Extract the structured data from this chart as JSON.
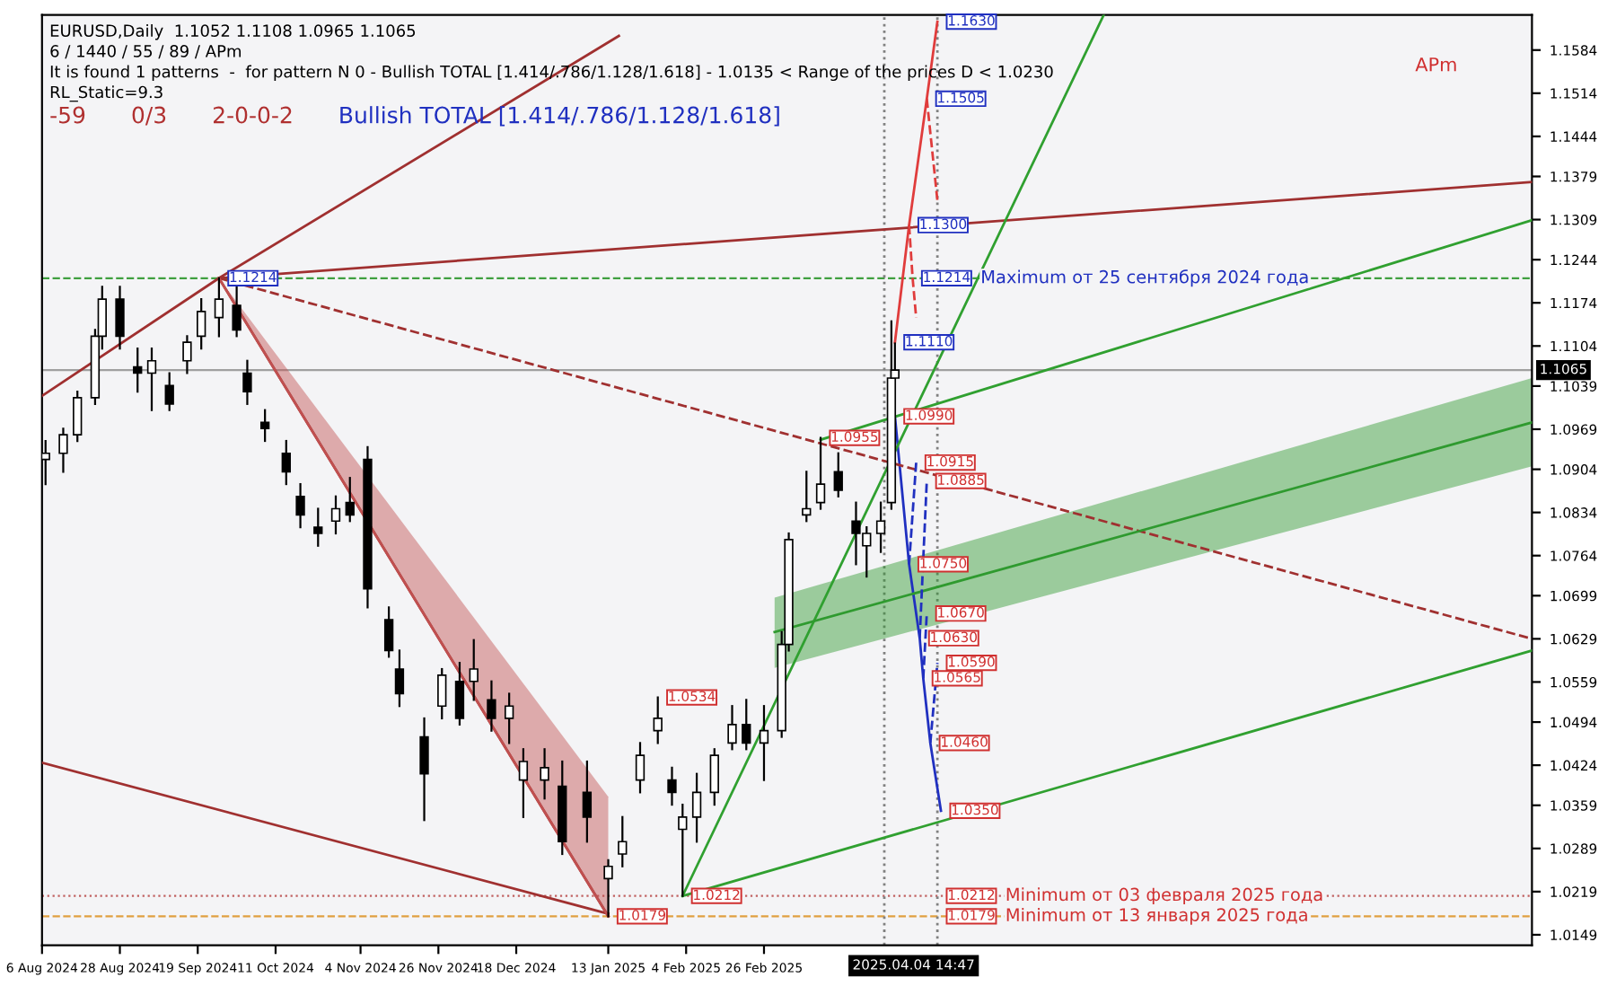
{
  "chart_data": {
    "type": "candlestick",
    "x": [
      "2024-08-07",
      "2024-08-12",
      "2024-08-16",
      "2024-08-21",
      "2024-08-23",
      "2024-08-28",
      "2024-09-02",
      "2024-09-06",
      "2024-09-11",
      "2024-09-16",
      "2024-09-20",
      "2024-09-25",
      "2024-09-30",
      "2024-10-03",
      "2024-10-08",
      "2024-10-14",
      "2024-10-18",
      "2024-10-23",
      "2024-10-28",
      "2024-11-01",
      "2024-11-06",
      "2024-11-12",
      "2024-11-15",
      "2024-11-22",
      "2024-11-27",
      "2024-12-02",
      "2024-12-06",
      "2024-12-11",
      "2024-12-16",
      "2024-12-20",
      "2024-12-26",
      "2024-12-31",
      "2025-01-07",
      "2025-01-13",
      "2025-01-17",
      "2025-01-22",
      "2025-01-27",
      "2025-01-31",
      "2025-02-03",
      "2025-02-07",
      "2025-02-12",
      "2025-02-17",
      "2025-02-21",
      "2025-02-26",
      "2025-03-03",
      "2025-03-05",
      "2025-03-10",
      "2025-03-14",
      "2025-03-19",
      "2025-03-24",
      "2025-03-27",
      "2025-03-31",
      "2025-04-03",
      "2025-04-04"
    ],
    "ohlc": [
      [
        1.092,
        1.095,
        1.088,
        1.093
      ],
      [
        1.093,
        1.097,
        1.09,
        1.096
      ],
      [
        1.096,
        1.103,
        1.095,
        1.102
      ],
      [
        1.102,
        1.113,
        1.101,
        1.112
      ],
      [
        1.112,
        1.12,
        1.11,
        1.118
      ],
      [
        1.118,
        1.12,
        1.11,
        1.112
      ],
      [
        1.107,
        1.11,
        1.103,
        1.106
      ],
      [
        1.106,
        1.11,
        1.1,
        1.108
      ],
      [
        1.104,
        1.106,
        1.1,
        1.101
      ],
      [
        1.108,
        1.112,
        1.106,
        1.111
      ],
      [
        1.112,
        1.118,
        1.11,
        1.116
      ],
      [
        1.115,
        1.1214,
        1.112,
        1.118
      ],
      [
        1.117,
        1.12,
        1.112,
        1.113
      ],
      [
        1.106,
        1.108,
        1.101,
        1.103
      ],
      [
        1.098,
        1.1,
        1.095,
        1.097
      ],
      [
        1.093,
        1.095,
        1.088,
        1.09
      ],
      [
        1.086,
        1.088,
        1.081,
        1.083
      ],
      [
        1.081,
        1.084,
        1.078,
        1.08
      ],
      [
        1.082,
        1.086,
        1.08,
        1.084
      ],
      [
        1.085,
        1.089,
        1.082,
        1.083
      ],
      [
        1.092,
        1.094,
        1.068,
        1.071
      ],
      [
        1.066,
        1.068,
        1.06,
        1.061
      ],
      [
        1.058,
        1.061,
        1.052,
        1.054
      ],
      [
        1.047,
        1.05,
        1.0335,
        1.041
      ],
      [
        1.052,
        1.058,
        1.05,
        1.057
      ],
      [
        1.056,
        1.059,
        1.049,
        1.05
      ],
      [
        1.056,
        1.0627,
        1.053,
        1.058
      ],
      [
        1.053,
        1.056,
        1.048,
        1.05
      ],
      [
        1.05,
        1.054,
        1.046,
        1.052
      ],
      [
        1.04,
        1.045,
        1.034,
        1.043
      ],
      [
        1.04,
        1.045,
        1.037,
        1.042
      ],
      [
        1.039,
        1.043,
        1.028,
        1.03
      ],
      [
        1.038,
        1.043,
        1.03,
        1.034
      ],
      [
        1.024,
        1.027,
        1.0179,
        1.026
      ],
      [
        1.028,
        1.034,
        1.026,
        1.03
      ],
      [
        1.04,
        1.046,
        1.038,
        1.044
      ],
      [
        1.048,
        1.0534,
        1.046,
        1.05
      ],
      [
        1.04,
        1.042,
        1.036,
        1.038
      ],
      [
        1.032,
        1.036,
        1.0212,
        1.034
      ],
      [
        1.034,
        1.041,
        1.03,
        1.038
      ],
      [
        1.038,
        1.045,
        1.036,
        1.044
      ],
      [
        1.046,
        1.052,
        1.045,
        1.049
      ],
      [
        1.049,
        1.053,
        1.045,
        1.046
      ],
      [
        1.046,
        1.052,
        1.04,
        1.048
      ],
      [
        1.048,
        1.064,
        1.047,
        1.062
      ],
      [
        1.062,
        1.08,
        1.061,
        1.079
      ],
      [
        1.083,
        1.09,
        1.082,
        1.084
      ],
      [
        1.085,
        1.0955,
        1.084,
        1.088
      ],
      [
        1.09,
        1.093,
        1.086,
        1.087
      ],
      [
        1.082,
        1.085,
        1.075,
        1.08
      ],
      [
        1.078,
        1.081,
        1.073,
        1.08
      ],
      [
        1.08,
        1.085,
        1.077,
        1.082
      ],
      [
        1.085,
        1.1144,
        1.084,
        1.1052
      ],
      [
        1.1052,
        1.1108,
        1.0965,
        1.1065
      ]
    ],
    "series": [
      {
        "type": "line",
        "color": "#e03c3c",
        "line_style": "solid",
        "x": [
          "2025-04-04",
          "2025-04-08",
          "2025-04-13",
          "2025-04-16"
        ],
        "values": [
          1.111,
          1.13,
          1.1505,
          1.163
        ]
      },
      {
        "type": "line",
        "color": "#2030c0",
        "line_style": "solid",
        "x": [
          "2025-04-04",
          "2025-04-08",
          "2025-04-11",
          "2025-04-12",
          "2025-04-14",
          "2025-04-17"
        ],
        "values": [
          1.099,
          1.075,
          1.063,
          1.0565,
          1.046,
          1.035
        ]
      },
      {
        "type": "line",
        "color": "#a03030",
        "line_style": "solid",
        "x": [
          "2024-08-06",
          "2024-09-25",
          "2025-01-16"
        ],
        "values": [
          1.1023,
          1.1214,
          1.1607
        ]
      },
      {
        "type": "line",
        "color": "#a03030",
        "line_style": "solid",
        "x": [
          "2024-09-25",
          "2025-01-13"
        ],
        "values": [
          1.1214,
          1.0179
        ]
      },
      {
        "type": "line",
        "color": "#a03030",
        "line_style": "solid",
        "x": [
          "2024-08-06",
          "2025-01-13"
        ],
        "values": [
          1.0428,
          1.0183
        ]
      },
      {
        "type": "line",
        "color": "#a03030",
        "line_style": "solid",
        "x": [
          "2024-09-25",
          "2025-10-01"
        ],
        "values": [
          1.1214,
          1.137
        ]
      },
      {
        "type": "line",
        "color": "#a03030",
        "line_style": "dashed",
        "x": [
          "2024-09-25",
          "2025-10-01"
        ],
        "values": [
          1.1214,
          1.0629
        ]
      },
      {
        "type": "line",
        "color": "#30a030",
        "line_style": "solid",
        "x": [
          "2025-02-03",
          "2025-06-02"
        ],
        "values": [
          1.0212,
          1.1641
        ]
      },
      {
        "type": "line",
        "color": "#30a030",
        "line_style": "solid",
        "x": [
          "2025-02-03",
          "2025-10-01"
        ],
        "values": [
          1.0212,
          1.061
        ]
      },
      {
        "type": "line",
        "color": "#30a030",
        "line_style": "solid",
        "x": [
          "2025-03-14",
          "2025-10-01"
        ],
        "values": [
          1.0952,
          1.1308
        ]
      },
      {
        "type": "line",
        "color": "#2f9a2f",
        "line_style": "solid",
        "x": [
          "2025-03-01",
          "2025-10-01"
        ],
        "values": [
          1.064,
          1.098
        ],
        "lower": [
          1.0582,
          1.0909
        ],
        "upper": [
          1.0696,
          1.1052
        ]
      },
      {
        "type": "line",
        "color": "#c05050",
        "line_style": "solid",
        "x": [
          "2024-09-25",
          "2025-01-13"
        ],
        "values": [
          1.1214,
          1.0179
        ],
        "lower": [
          1.1214,
          1.0179
        ],
        "upper": [
          1.1214,
          1.0373
        ]
      },
      {
        "type": "line",
        "color": "#e03c3c",
        "line_style": "dashed",
        "x": [
          "2025-04-13",
          "2025-04-16"
        ],
        "values": [
          1.1505,
          1.134
        ]
      },
      {
        "type": "line",
        "color": "#e03c3c",
        "line_style": "dashed",
        "x": [
          "2025-04-08",
          "2025-04-09",
          "2025-04-10"
        ],
        "values": [
          1.13,
          1.1214,
          1.115
        ]
      },
      {
        "type": "line",
        "color": "#2030c0",
        "line_style": "dashed",
        "x": [
          "2025-04-08",
          "2025-04-10"
        ],
        "values": [
          1.075,
          1.0915
        ]
      },
      {
        "type": "line",
        "color": "#2030c0",
        "line_style": "dashed",
        "x": [
          "2025-04-11",
          "2025-04-13"
        ],
        "values": [
          1.063,
          1.0885
        ]
      },
      {
        "type": "line",
        "color": "#2030c0",
        "line_style": "dashed",
        "x": [
          "2025-04-12",
          "2025-04-13"
        ],
        "values": [
          1.0565,
          1.067
        ]
      },
      {
        "type": "line",
        "color": "#2030c0",
        "line_style": "dashed",
        "x": [
          "2025-04-14",
          "2025-04-16"
        ],
        "values": [
          1.046,
          1.059
        ]
      }
    ],
    "ref_lines": [
      {
        "axis": "y",
        "value": 1.1065,
        "label": "1.1065",
        "color": "#a0a0a0",
        "line_style": "solid"
      },
      {
        "axis": "y",
        "value": 1.1214,
        "color": "#40a040",
        "line_style": "dashed"
      },
      {
        "axis": "y",
        "value": 1.0212,
        "color": "#c06060",
        "line_style": "dotted"
      },
      {
        "axis": "y",
        "value": 1.0179,
        "color": "#e0a040",
        "line_style": "dashed"
      },
      {
        "axis": "x",
        "value": "2025-04-01",
        "color": "#808080",
        "line_style": "dotted"
      },
      {
        "axis": "x",
        "value": "2025-04-16",
        "color": "#808080",
        "line_style": "dotted"
      }
    ],
    "annotations": [
      "EURUSD,Daily  1.1052 1.1108 1.0965 1.1065",
      "6 / 1440 / 55 / 89 / APm",
      "It is found 1 patterns  -  for pattern N 0 - Bullish TOTAL [1.414/.786/1.128/1.618] - 1.0135 < Range of the prices D < 1.0230",
      "RL_Static=9.3",
      "-59",
      "0/3",
      "2-0-0-2",
      "Bullish TOTAL [1.414/.786/1.128/1.618]",
      "APm",
      "2025.04.04 14:47",
      {
        "text": "1.1214",
        "x": "2024-09-25",
        "y": 1.1214
      },
      {
        "text": "1.0955",
        "x": "2025-03-14",
        "y": 1.0955
      },
      {
        "text": "1.0534",
        "x": "2025-01-27",
        "y": 1.0534
      },
      {
        "text": "1.0212",
        "x": "2025-02-03",
        "y": 1.0212
      },
      {
        "text": "1.0179",
        "x": "2025-01-13",
        "y": 1.0179
      },
      {
        "text": "1.1630",
        "x": "2025-04-16",
        "y": 1.163
      },
      {
        "text": "1.1505",
        "x": "2025-04-13",
        "y": 1.1505
      },
      {
        "text": "1.1300",
        "x": "2025-04-08",
        "y": 1.13
      },
      {
        "text": "1.1214",
        "x": "2025-04-09",
        "y": 1.1214
      },
      "Maximum от 25 сентября 2024 года",
      {
        "text": "1.1110",
        "x": "2025-04-04",
        "y": 1.111
      },
      {
        "text": "1.0990",
        "x": "2025-04-04",
        "y": 1.099
      },
      {
        "text": "1.0915",
        "x": "2025-04-10",
        "y": 1.0915
      },
      {
        "text": "1.0885",
        "x": "2025-04-13",
        "y": 1.0885
      },
      {
        "text": "1.0750",
        "x": "2025-04-08",
        "y": 1.075
      },
      {
        "text": "1.0670",
        "x": "2025-04-13",
        "y": 1.067
      },
      {
        "text": "1.0630",
        "x": "2025-04-11",
        "y": 1.063
      },
      {
        "text": "1.0590",
        "x": "2025-04-16",
        "y": 1.059
      },
      {
        "text": "1.0565",
        "x": "2025-04-12",
        "y": 1.0565
      },
      {
        "text": "1.0460",
        "x": "2025-04-14",
        "y": 1.046
      },
      {
        "text": "1.0350",
        "x": "2025-04-17",
        "y": 1.035
      },
      {
        "text": "1.0212",
        "x": "2025-04-16",
        "y": 1.0212
      },
      "Minimum от 03 февраля 2025 года",
      {
        "text": "1.0179",
        "x": "2025-04-16",
        "y": 1.0179
      },
      "Minimum от 13 января 2025 года"
    ],
    "xlim": [
      "2024-08-06",
      "2025-10-01"
    ],
    "xticks": [
      {
        "value": "2024-08-06",
        "label": "6 Aug 2024"
      },
      {
        "value": "2024-08-28",
        "label": "28 Aug 2024"
      },
      {
        "value": "2024-09-19",
        "label": "19 Sep 2024"
      },
      {
        "value": "2024-10-11",
        "label": "11 Oct 2024"
      },
      {
        "value": "2024-11-04",
        "label": "4 Nov 2024"
      },
      {
        "value": "2024-11-26",
        "label": "26 Nov 2024"
      },
      {
        "value": "2024-12-18",
        "label": "18 Dec 2024"
      },
      {
        "value": "2025-01-13",
        "label": "13 Jan 2025"
      },
      {
        "value": "2025-02-04",
        "label": "4 Feb 2025"
      },
      {
        "value": "2025-02-26",
        "label": "26 Feb 2025"
      }
    ],
    "ylim": [
      1.0132,
      1.1641
    ],
    "yticks": [
      1.0149,
      1.0219,
      1.0289,
      1.0359,
      1.0424,
      1.0494,
      1.0559,
      1.0629,
      1.0699,
      1.0764,
      1.0834,
      1.0904,
      1.0969,
      1.1039,
      1.1104,
      1.1174,
      1.1244,
      1.1309,
      1.1379,
      1.1444,
      1.1514,
      1.1584
    ],
    "grid": false
  }
}
